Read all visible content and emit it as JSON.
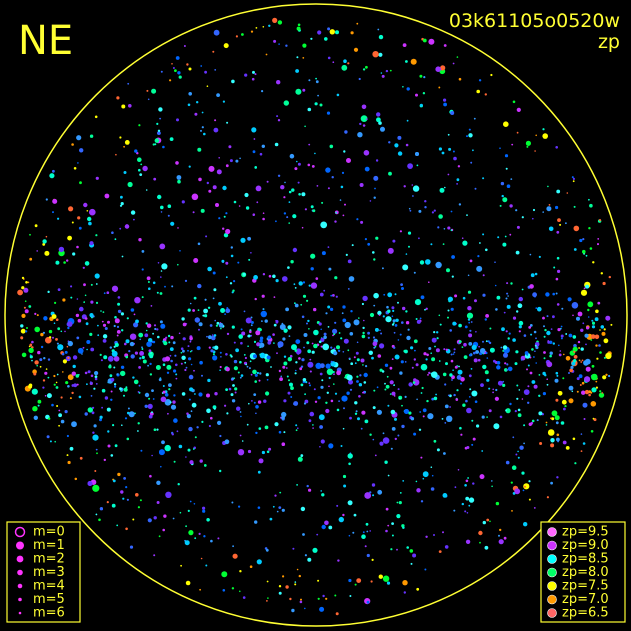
{
  "header": {
    "direction": "NE",
    "frame_id": "03k61105o0520w",
    "mode": "zp"
  },
  "magnitude_legend": [
    {
      "label": "m=0",
      "radius": 4.5,
      "open": true
    },
    {
      "label": "m=1",
      "radius": 4
    },
    {
      "label": "m=2",
      "radius": 3.4
    },
    {
      "label": "m=3",
      "radius": 2.8
    },
    {
      "label": "m=4",
      "radius": 2.3
    },
    {
      "label": "m=5",
      "radius": 1.8
    },
    {
      "label": "m=6",
      "radius": 1.3
    }
  ],
  "zp_legend": [
    {
      "label": "zp=9.5",
      "color": "#ff66ff"
    },
    {
      "label": "zp=9.0",
      "color": "#cc33ff"
    },
    {
      "label": "zp=8.5",
      "color": "#00ffff"
    },
    {
      "label": "zp=8.0",
      "color": "#00ff66"
    },
    {
      "label": "zp=7.5",
      "color": "#ffff00"
    },
    {
      "label": "zp=7.0",
      "color": "#ff9900"
    },
    {
      "label": "zp=6.5",
      "color": "#ff6666"
    }
  ]
}
